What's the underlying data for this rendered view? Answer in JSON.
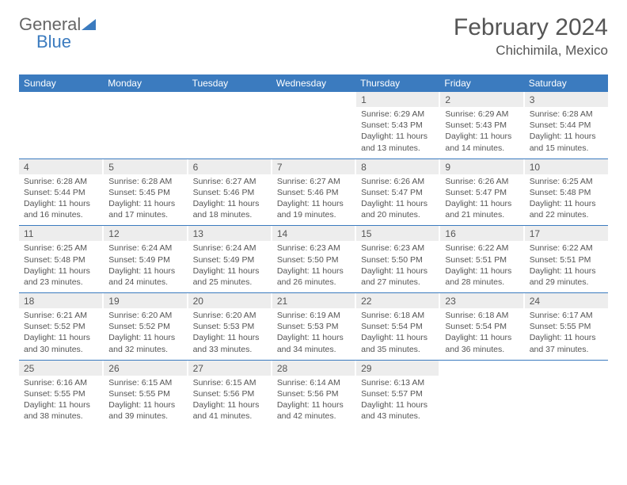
{
  "brand": {
    "part1": "General",
    "part2": "Blue"
  },
  "title": "February 2024",
  "location": "Chichimila, Mexico",
  "colors": {
    "header_bg": "#3b7bbf",
    "header_text": "#ffffff",
    "daynum_bg": "#ededed",
    "text": "#555555",
    "rule": "#3b7bbf"
  },
  "typography": {
    "title_fontsize": 30,
    "location_fontsize": 17,
    "header_fontsize": 12,
    "body_fontsize": 10.5
  },
  "dayNames": [
    "Sunday",
    "Monday",
    "Tuesday",
    "Wednesday",
    "Thursday",
    "Friday",
    "Saturday"
  ],
  "weeks": [
    [
      null,
      null,
      null,
      null,
      {
        "num": "1",
        "sunrise": "Sunrise: 6:29 AM",
        "sunset": "Sunset: 5:43 PM",
        "daylight": "Daylight: 11 hours and 13 minutes."
      },
      {
        "num": "2",
        "sunrise": "Sunrise: 6:29 AM",
        "sunset": "Sunset: 5:43 PM",
        "daylight": "Daylight: 11 hours and 14 minutes."
      },
      {
        "num": "3",
        "sunrise": "Sunrise: 6:28 AM",
        "sunset": "Sunset: 5:44 PM",
        "daylight": "Daylight: 11 hours and 15 minutes."
      }
    ],
    [
      {
        "num": "4",
        "sunrise": "Sunrise: 6:28 AM",
        "sunset": "Sunset: 5:44 PM",
        "daylight": "Daylight: 11 hours and 16 minutes."
      },
      {
        "num": "5",
        "sunrise": "Sunrise: 6:28 AM",
        "sunset": "Sunset: 5:45 PM",
        "daylight": "Daylight: 11 hours and 17 minutes."
      },
      {
        "num": "6",
        "sunrise": "Sunrise: 6:27 AM",
        "sunset": "Sunset: 5:46 PM",
        "daylight": "Daylight: 11 hours and 18 minutes."
      },
      {
        "num": "7",
        "sunrise": "Sunrise: 6:27 AM",
        "sunset": "Sunset: 5:46 PM",
        "daylight": "Daylight: 11 hours and 19 minutes."
      },
      {
        "num": "8",
        "sunrise": "Sunrise: 6:26 AM",
        "sunset": "Sunset: 5:47 PM",
        "daylight": "Daylight: 11 hours and 20 minutes."
      },
      {
        "num": "9",
        "sunrise": "Sunrise: 6:26 AM",
        "sunset": "Sunset: 5:47 PM",
        "daylight": "Daylight: 11 hours and 21 minutes."
      },
      {
        "num": "10",
        "sunrise": "Sunrise: 6:25 AM",
        "sunset": "Sunset: 5:48 PM",
        "daylight": "Daylight: 11 hours and 22 minutes."
      }
    ],
    [
      {
        "num": "11",
        "sunrise": "Sunrise: 6:25 AM",
        "sunset": "Sunset: 5:48 PM",
        "daylight": "Daylight: 11 hours and 23 minutes."
      },
      {
        "num": "12",
        "sunrise": "Sunrise: 6:24 AM",
        "sunset": "Sunset: 5:49 PM",
        "daylight": "Daylight: 11 hours and 24 minutes."
      },
      {
        "num": "13",
        "sunrise": "Sunrise: 6:24 AM",
        "sunset": "Sunset: 5:49 PM",
        "daylight": "Daylight: 11 hours and 25 minutes."
      },
      {
        "num": "14",
        "sunrise": "Sunrise: 6:23 AM",
        "sunset": "Sunset: 5:50 PM",
        "daylight": "Daylight: 11 hours and 26 minutes."
      },
      {
        "num": "15",
        "sunrise": "Sunrise: 6:23 AM",
        "sunset": "Sunset: 5:50 PM",
        "daylight": "Daylight: 11 hours and 27 minutes."
      },
      {
        "num": "16",
        "sunrise": "Sunrise: 6:22 AM",
        "sunset": "Sunset: 5:51 PM",
        "daylight": "Daylight: 11 hours and 28 minutes."
      },
      {
        "num": "17",
        "sunrise": "Sunrise: 6:22 AM",
        "sunset": "Sunset: 5:51 PM",
        "daylight": "Daylight: 11 hours and 29 minutes."
      }
    ],
    [
      {
        "num": "18",
        "sunrise": "Sunrise: 6:21 AM",
        "sunset": "Sunset: 5:52 PM",
        "daylight": "Daylight: 11 hours and 30 minutes."
      },
      {
        "num": "19",
        "sunrise": "Sunrise: 6:20 AM",
        "sunset": "Sunset: 5:52 PM",
        "daylight": "Daylight: 11 hours and 32 minutes."
      },
      {
        "num": "20",
        "sunrise": "Sunrise: 6:20 AM",
        "sunset": "Sunset: 5:53 PM",
        "daylight": "Daylight: 11 hours and 33 minutes."
      },
      {
        "num": "21",
        "sunrise": "Sunrise: 6:19 AM",
        "sunset": "Sunset: 5:53 PM",
        "daylight": "Daylight: 11 hours and 34 minutes."
      },
      {
        "num": "22",
        "sunrise": "Sunrise: 6:18 AM",
        "sunset": "Sunset: 5:54 PM",
        "daylight": "Daylight: 11 hours and 35 minutes."
      },
      {
        "num": "23",
        "sunrise": "Sunrise: 6:18 AM",
        "sunset": "Sunset: 5:54 PM",
        "daylight": "Daylight: 11 hours and 36 minutes."
      },
      {
        "num": "24",
        "sunrise": "Sunrise: 6:17 AM",
        "sunset": "Sunset: 5:55 PM",
        "daylight": "Daylight: 11 hours and 37 minutes."
      }
    ],
    [
      {
        "num": "25",
        "sunrise": "Sunrise: 6:16 AM",
        "sunset": "Sunset: 5:55 PM",
        "daylight": "Daylight: 11 hours and 38 minutes."
      },
      {
        "num": "26",
        "sunrise": "Sunrise: 6:15 AM",
        "sunset": "Sunset: 5:55 PM",
        "daylight": "Daylight: 11 hours and 39 minutes."
      },
      {
        "num": "27",
        "sunrise": "Sunrise: 6:15 AM",
        "sunset": "Sunset: 5:56 PM",
        "daylight": "Daylight: 11 hours and 41 minutes."
      },
      {
        "num": "28",
        "sunrise": "Sunrise: 6:14 AM",
        "sunset": "Sunset: 5:56 PM",
        "daylight": "Daylight: 11 hours and 42 minutes."
      },
      {
        "num": "29",
        "sunrise": "Sunrise: 6:13 AM",
        "sunset": "Sunset: 5:57 PM",
        "daylight": "Daylight: 11 hours and 43 minutes."
      },
      null,
      null
    ]
  ]
}
